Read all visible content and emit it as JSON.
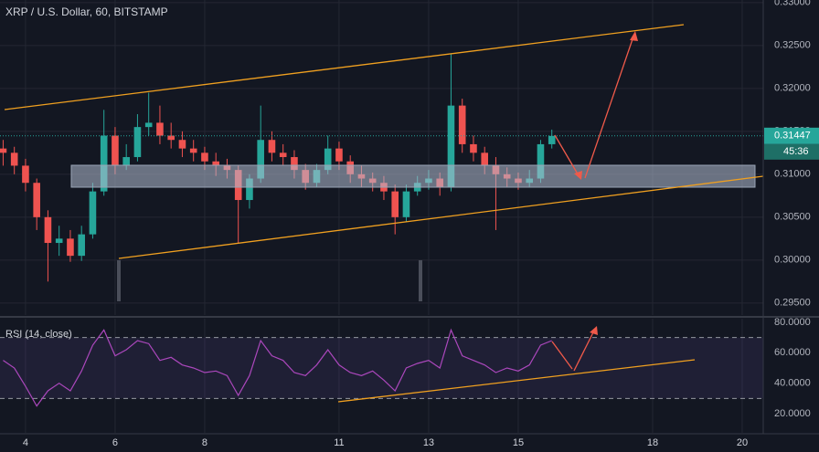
{
  "chart_data": {
    "type": "candlestick",
    "title": "XRP / U.S. Dollar, 60, BITSTAMP",
    "x": [
      3.5,
      3.75,
      4,
      4.25,
      4.5,
      4.75,
      5,
      5.25,
      5.5,
      5.75,
      6,
      6.25,
      6.5,
      6.75,
      7,
      7.25,
      7.5,
      7.75,
      8,
      8.25,
      8.5,
      8.75,
      9,
      9.25,
      9.5,
      9.75,
      10,
      10.25,
      10.5,
      10.75,
      11,
      11.25,
      11.5,
      11.75,
      12,
      12.25,
      12.5,
      12.75,
      13,
      13.25,
      13.5,
      13.75,
      14,
      14.25,
      14.5,
      14.75,
      15,
      15.25,
      15.5,
      15.75
    ],
    "open": [
      0.313,
      0.3125,
      0.311,
      0.309,
      0.305,
      0.302,
      0.3025,
      0.3005,
      0.303,
      0.308,
      0.3145,
      0.311,
      0.312,
      0.3155,
      0.316,
      0.3145,
      0.314,
      0.313,
      0.3125,
      0.3115,
      0.311,
      0.3105,
      0.307,
      0.3095,
      0.314,
      0.3125,
      0.312,
      0.3105,
      0.309,
      0.3105,
      0.313,
      0.3115,
      0.31,
      0.3095,
      0.309,
      0.308,
      0.305,
      0.308,
      0.309,
      0.3095,
      0.3085,
      0.318,
      0.3135,
      0.3125,
      0.311,
      0.31,
      0.3095,
      0.309,
      0.3095,
      0.3135
    ],
    "high": [
      0.314,
      0.3132,
      0.3118,
      0.3095,
      0.3058,
      0.304,
      0.3035,
      0.304,
      0.309,
      0.3175,
      0.3155,
      0.3135,
      0.317,
      0.3195,
      0.318,
      0.316,
      0.315,
      0.314,
      0.3132,
      0.3125,
      0.3118,
      0.311,
      0.31,
      0.318,
      0.315,
      0.3135,
      0.3128,
      0.3112,
      0.3112,
      0.3145,
      0.3138,
      0.3122,
      0.311,
      0.3102,
      0.3098,
      0.3088,
      0.3088,
      0.3098,
      0.3105,
      0.3102,
      0.324,
      0.3188,
      0.3145,
      0.3132,
      0.312,
      0.3108,
      0.3102,
      0.3105,
      0.314,
      0.3152
    ],
    "low": [
      0.311,
      0.31,
      0.308,
      0.3035,
      0.2975,
      0.3005,
      0.2998,
      0.2999,
      0.3025,
      0.3075,
      0.31,
      0.3105,
      0.3115,
      0.3145,
      0.3135,
      0.313,
      0.312,
      0.3115,
      0.3105,
      0.3098,
      0.3095,
      0.302,
      0.306,
      0.309,
      0.3115,
      0.311,
      0.3095,
      0.3082,
      0.3085,
      0.31,
      0.3105,
      0.309,
      0.3085,
      0.308,
      0.307,
      0.303,
      0.3045,
      0.3075,
      0.3082,
      0.3075,
      0.308,
      0.3125,
      0.3115,
      0.31,
      0.3035,
      0.3085,
      0.3082,
      0.3085,
      0.309,
      0.313
    ],
    "close": [
      0.3125,
      0.311,
      0.309,
      0.305,
      0.302,
      0.3025,
      0.3005,
      0.303,
      0.308,
      0.3145,
      0.311,
      0.312,
      0.3155,
      0.316,
      0.3145,
      0.314,
      0.313,
      0.3125,
      0.3115,
      0.311,
      0.3105,
      0.307,
      0.3095,
      0.314,
      0.3125,
      0.312,
      0.3105,
      0.309,
      0.3105,
      0.313,
      0.3115,
      0.31,
      0.3095,
      0.309,
      0.308,
      0.305,
      0.308,
      0.309,
      0.3095,
      0.3085,
      0.318,
      0.3135,
      0.3125,
      0.311,
      0.31,
      0.3095,
      0.309,
      0.3095,
      0.3135,
      0.31447
    ],
    "up_color": "#26a69a",
    "down_color": "#ef5350",
    "xlim": [
      3.43,
      20.47
    ],
    "xticks": [
      4,
      6,
      8,
      11,
      13,
      15,
      18,
      20
    ],
    "ylim": [
      0.2936,
      0.3303
    ],
    "yticks": [
      {
        "value": 0.33,
        "label": "0.33000"
      },
      {
        "value": 0.325,
        "label": "0.32500"
      },
      {
        "value": 0.32,
        "label": "0.32000"
      },
      {
        "value": 0.315,
        "label": "0.31500"
      },
      {
        "value": 0.31,
        "label": "0.31000"
      },
      {
        "value": 0.305,
        "label": "0.30500"
      },
      {
        "value": 0.3,
        "label": "0.30000"
      },
      {
        "value": 0.295,
        "label": "0.29500"
      }
    ],
    "grid": true,
    "last_price": 0.31447,
    "countdown": "45:36",
    "rsi": {
      "title": "RSI (14, close)",
      "color": "#ab47bc",
      "values": [
        55,
        50,
        38,
        25,
        35,
        40,
        35,
        48,
        65,
        75,
        58,
        62,
        68,
        66,
        55,
        57,
        52,
        50,
        47,
        48,
        45,
        32,
        45,
        68,
        58,
        55,
        47,
        45,
        52,
        62,
        52,
        47,
        45,
        48,
        42,
        35,
        50,
        53,
        55,
        50,
        75,
        58,
        55,
        52,
        47,
        50,
        48,
        52,
        65,
        68
      ],
      "ylim": [
        7.4,
        83
      ],
      "yticks": [
        {
          "value": 80,
          "label": "80.0000"
        },
        {
          "value": 60,
          "label": "60.0000"
        },
        {
          "value": 40,
          "label": "40.0000"
        },
        {
          "value": 20,
          "label": "20.0000"
        }
      ],
      "bands": [
        70,
        30
      ]
    }
  }
}
